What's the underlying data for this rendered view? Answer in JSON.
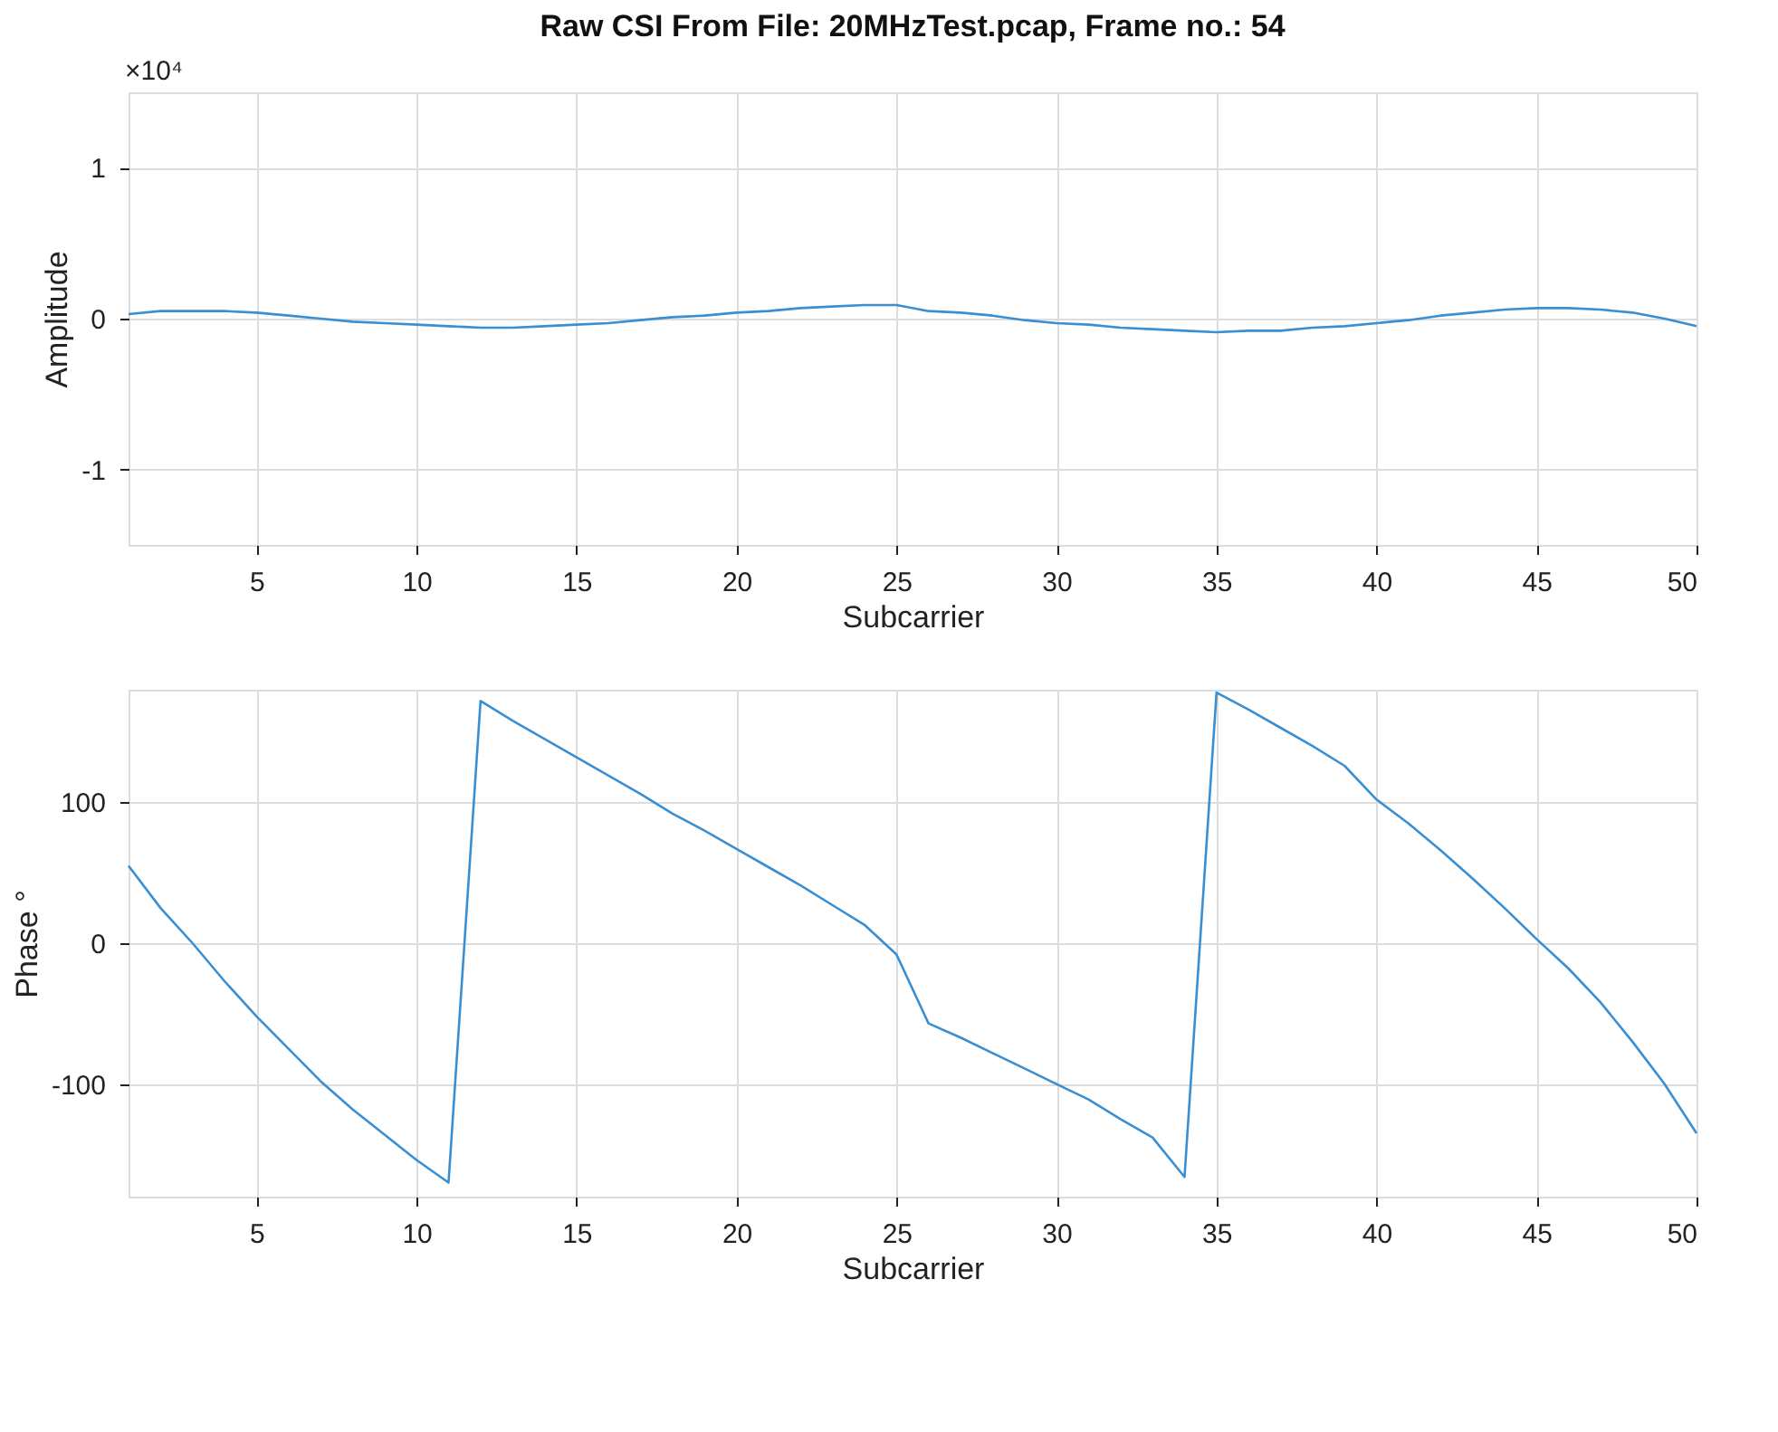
{
  "chart_data": [
    {
      "type": "line",
      "title": "Raw CSI From File: 20MHzTest.pcap, Frame no.: 54",
      "xlabel": "Subcarrier",
      "ylabel": "Amplitude",
      "annotations": [
        "×10⁴"
      ],
      "x": [
        1,
        2,
        3,
        4,
        5,
        6,
        7,
        8,
        9,
        10,
        11,
        12,
        13,
        14,
        15,
        16,
        17,
        18,
        19,
        20,
        21,
        22,
        23,
        24,
        25,
        26,
        27,
        28,
        29,
        30,
        31,
        32,
        33,
        34,
        35,
        36,
        37,
        38,
        39,
        40,
        41,
        42,
        43,
        44,
        45,
        46,
        47,
        48,
        49,
        50
      ],
      "series": [
        {
          "color": "#3a8fd2",
          "values": [
            0.03,
            0.05,
            0.05,
            0.05,
            0.04,
            0.02,
            0,
            -0.02,
            -0.03,
            -0.04,
            -0.05,
            -0.06,
            -0.06,
            -0.05,
            -0.04,
            -0.03,
            -0.01,
            0.01,
            0.02,
            0.04,
            0.05,
            0.07,
            0.08,
            0.09,
            0.09,
            0.05,
            0.04,
            0.02,
            -0.01,
            -0.03,
            -0.04,
            -0.06,
            -0.07,
            -0.08,
            -0.09,
            -0.08,
            -0.08,
            -0.06,
            -0.05,
            -0.03,
            -0.01,
            0.02,
            0.04,
            0.06,
            0.07,
            0.07,
            0.06,
            0.04,
            0,
            -0.05
          ]
        }
      ],
      "xlim": [
        1,
        50
      ],
      "xticks": [
        5,
        10,
        15,
        20,
        25,
        30,
        35,
        40,
        45,
        50
      ],
      "ylim": [
        -1.5,
        1.5
      ],
      "yticks": [
        -1,
        0,
        1
      ],
      "grid": true
    },
    {
      "type": "line",
      "xlabel": "Subcarrier",
      "ylabel": "Phase  °",
      "x": [
        1,
        2,
        3,
        4,
        5,
        6,
        7,
        8,
        9,
        10,
        11,
        12,
        13,
        14,
        15,
        16,
        17,
        18,
        19,
        20,
        21,
        22,
        23,
        24,
        25,
        26,
        27,
        28,
        29,
        30,
        31,
        32,
        33,
        34,
        35,
        36,
        37,
        38,
        39,
        40,
        41,
        42,
        43,
        44,
        45,
        46,
        47,
        48,
        49,
        50
      ],
      "series": [
        {
          "color": "#3a8fd2",
          "values": [
            55,
            25,
            0,
            -27,
            -52,
            -75,
            -98,
            -118,
            -136,
            -154,
            -170,
            172,
            158,
            145,
            132,
            119,
            106,
            92,
            80,
            67,
            54,
            41,
            27,
            13,
            -8,
            -57,
            -67,
            -78,
            -89,
            -100,
            -111,
            -125,
            -138,
            -166,
            178,
            166,
            153,
            140,
            126,
            102,
            85,
            66,
            46,
            25,
            3,
            -18,
            -42,
            -70,
            -100,
            -135
          ]
        }
      ],
      "xlim": [
        1,
        50
      ],
      "xticks": [
        5,
        10,
        15,
        20,
        25,
        30,
        35,
        40,
        45,
        50
      ],
      "ylim": [
        -180,
        180
      ],
      "yticks": [
        -100,
        0,
        100
      ],
      "grid": true
    }
  ]
}
